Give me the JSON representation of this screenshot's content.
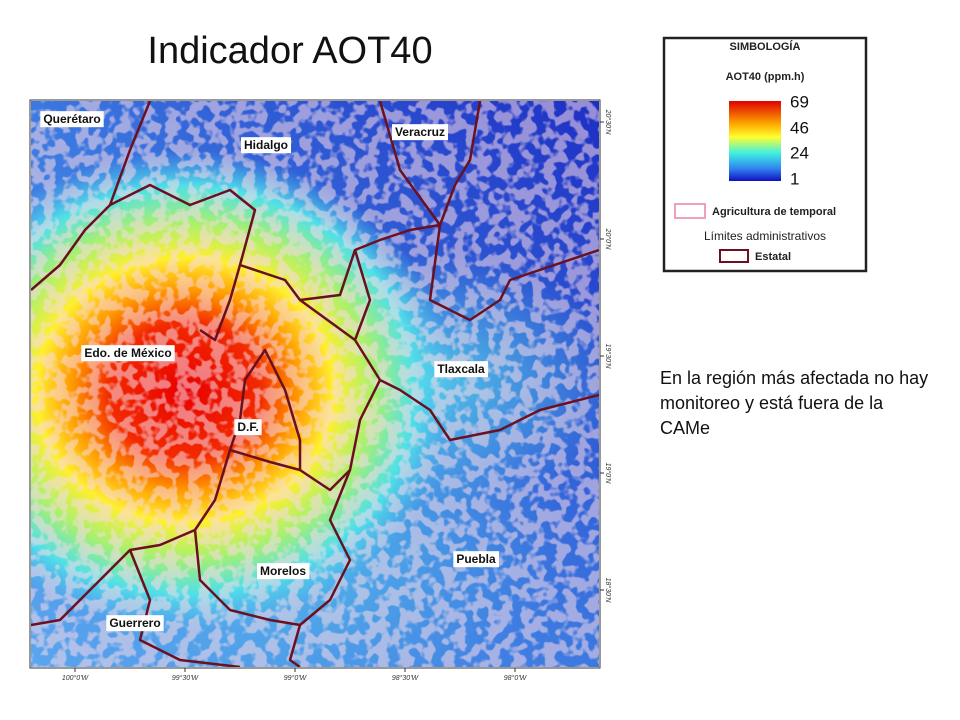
{
  "title": "Indicador AOT40",
  "map": {
    "regions": [
      "Querétaro",
      "Hidalgo",
      "Veracruz",
      "Edo. de México",
      "Tlaxcala",
      "D.F.",
      "Morelos",
      "Puebla",
      "Guerrero"
    ],
    "longitudes": [
      "100°0'W",
      "99°30'W",
      "99°0'W",
      "98°30'W",
      "98°0'W"
    ],
    "latitudes": [
      "20°30'N",
      "20°0'N",
      "19°30'N",
      "19°0'N",
      "18°30'N"
    ]
  },
  "legend": {
    "title": "SIMBOLOGÍA",
    "scale_title": "AOT40 (ppm.h)",
    "ticks": [
      69,
      46,
      24,
      1
    ],
    "agriculture": "Agricultura de temporal",
    "limits": "Límites administrativos",
    "state": "Estatal"
  },
  "note": "En la región más afectada no hay monitoreo y está fuera de la CAMe"
}
